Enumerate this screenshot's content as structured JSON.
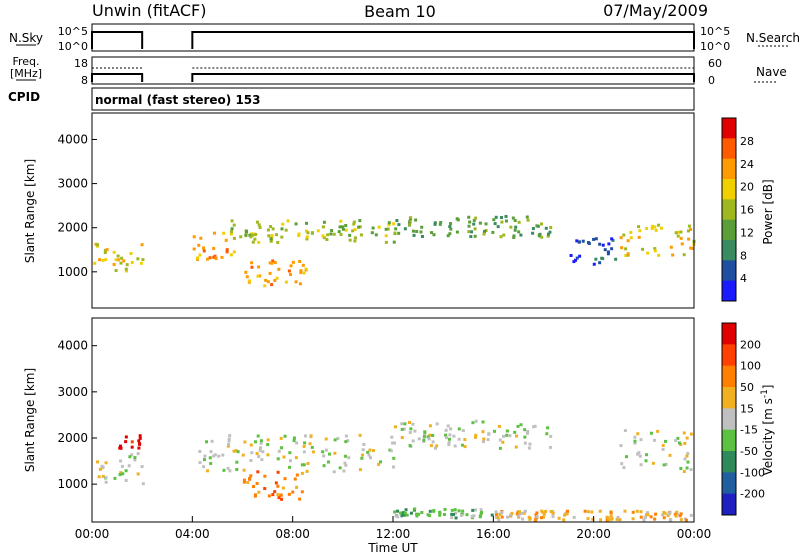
{
  "header": {
    "radar": "Unwin (fitACF)",
    "beam": "Beam 10",
    "date": "07/May/2009"
  },
  "chart_data": [
    {
      "panel": "noise",
      "type": "line",
      "left_label": "N.Sky",
      "right_label": "N.Search",
      "left_ticks": [
        "10^5",
        "10^0"
      ],
      "right_ticks": [
        "10^5",
        "10^0"
      ],
      "segments_hours": [
        [
          0.0,
          2.0
        ],
        [
          4.0,
          24.0
        ]
      ]
    },
    {
      "panel": "frequency",
      "type": "line",
      "left_label_line1": "Freq.",
      "left_label_line2": "[MHz]",
      "right_label": "Nave",
      "left_ticks": [
        "18",
        "8"
      ],
      "right_ticks": [
        "60",
        "0"
      ],
      "segments_hours": [
        [
          0.0,
          2.0
        ],
        [
          4.0,
          24.0
        ]
      ]
    },
    {
      "panel": "cpid",
      "type": "table",
      "label": "CPID",
      "mode_text": "normal (fast stereo) 153"
    },
    {
      "panel": "power",
      "type": "heatmap",
      "ylabel": "Slant Range [km]",
      "yticks": [
        1000,
        2000,
        3000,
        4000
      ],
      "ylim": [
        180,
        4600
      ],
      "colorbar_label": "Power [dB]",
      "colorbar_ticks": [
        "28",
        "24",
        "20",
        "16",
        "12",
        "8",
        "4"
      ],
      "colors": [
        "#1a1aff",
        "#1f4fa0",
        "#3a8a62",
        "#5a9e3a",
        "#a0b820",
        "#f0d000",
        "#ff9a00",
        "#ff5a00",
        "#e00000"
      ],
      "bands": [
        {
          "t0": 0.0,
          "t1": 2.0,
          "r0": 1000,
          "r1": 1700,
          "level": 5
        },
        {
          "t0": 4.0,
          "t1": 5.8,
          "r0": 1300,
          "r1": 2000,
          "level": 6
        },
        {
          "t0": 6.0,
          "t1": 8.5,
          "r0": 700,
          "r1": 1300,
          "level": 6
        },
        {
          "t0": 5.5,
          "t1": 12.0,
          "r0": 1700,
          "r1": 2200,
          "level": 4
        },
        {
          "t0": 12.0,
          "t1": 18.3,
          "r0": 1800,
          "r1": 2300,
          "level": 3
        },
        {
          "t0": 21.0,
          "t1": 24.0,
          "r0": 1400,
          "r1": 2100,
          "level": 5
        },
        {
          "t0": 19.0,
          "t1": 21.0,
          "r0": 1200,
          "r1": 1800,
          "level": 1
        }
      ]
    },
    {
      "panel": "velocity",
      "type": "heatmap",
      "ylabel": "Slant Range [km]",
      "yticks": [
        1000,
        2000,
        3000,
        4000
      ],
      "ylim": [
        180,
        4600
      ],
      "xlabel": "Time UT",
      "xticks": [
        "00:00",
        "04:00",
        "08:00",
        "12:00",
        "16:00",
        "20:00",
        "00:00"
      ],
      "xlim_hours": [
        0,
        24
      ],
      "colorbar_label": "Velocity [m s^-1]",
      "colorbar_ticks": [
        "200",
        "100",
        "50",
        "15",
        "-15",
        "-50",
        "-100",
        "-200"
      ],
      "colors": [
        "#2020c0",
        "#1f5fa0",
        "#2e8a5a",
        "#5cc040",
        "#c0c0c0",
        "#f0b020",
        "#ff8000",
        "#ff4000",
        "#e00000"
      ],
      "bands": [
        {
          "t0": 0.0,
          "t1": 2.0,
          "r0": 1000,
          "r1": 1700,
          "level": 4
        },
        {
          "t0": 1.0,
          "t1": 2.0,
          "r0": 1800,
          "r1": 2100,
          "level": 8
        },
        {
          "t0": 4.0,
          "t1": 12.0,
          "r0": 1300,
          "r1": 2100,
          "level": 4
        },
        {
          "t0": 6.0,
          "t1": 8.5,
          "r0": 700,
          "r1": 1300,
          "level": 6
        },
        {
          "t0": 12.0,
          "t1": 18.3,
          "r0": 1800,
          "r1": 2400,
          "level": 4
        },
        {
          "t0": 21.0,
          "t1": 24.0,
          "r0": 1300,
          "r1": 2200,
          "level": 4
        },
        {
          "t0": 12.0,
          "t1": 16.0,
          "r0": 300,
          "r1": 500,
          "level": 3
        },
        {
          "t0": 16.0,
          "t1": 24.0,
          "r0": 250,
          "r1": 450,
          "level": 5
        }
      ]
    }
  ]
}
